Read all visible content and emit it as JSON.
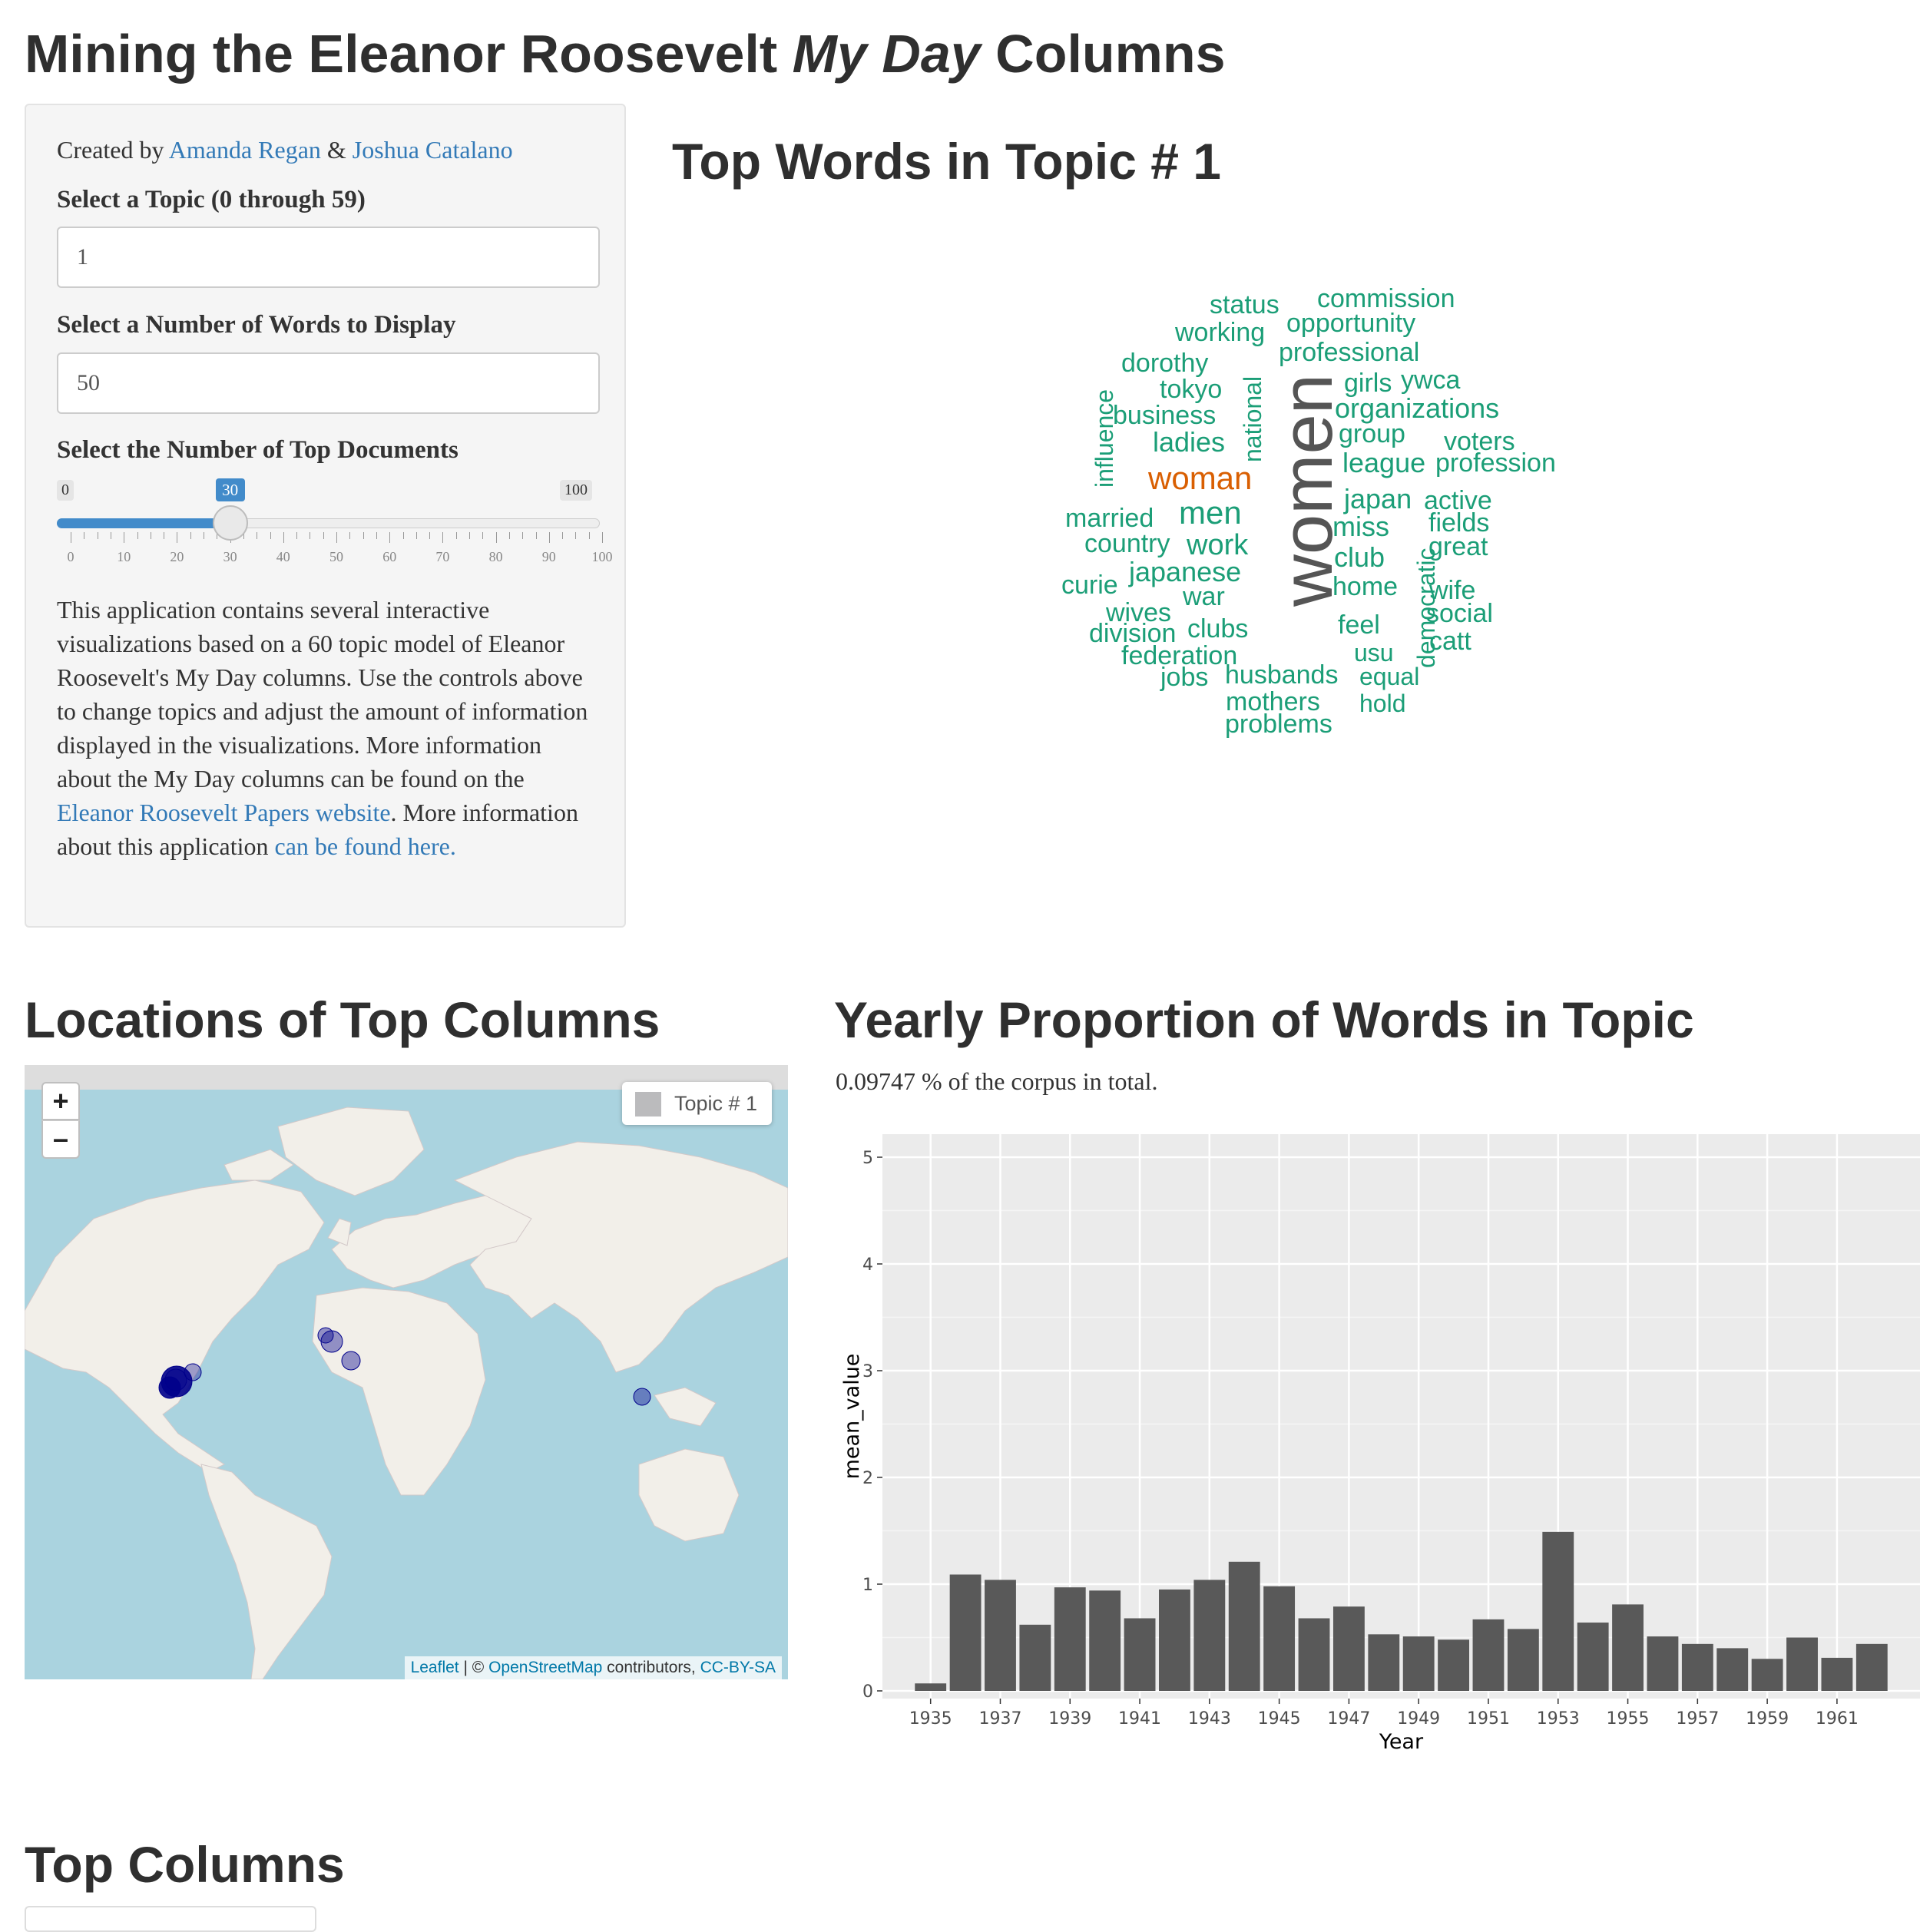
{
  "header": {
    "title_prefix": "Mining the Eleanor Roosevelt",
    "title_italic": "My Day",
    "title_suffix": "Columns"
  },
  "sidebar": {
    "created_by": "Created by",
    "author1": "Amanda Regan",
    "amp": "&",
    "author2": "Joshua Catalano",
    "topic_label": "Select a Topic (0 through 59)",
    "topic_value": "1",
    "words_label": "Select a Number of Words to Display",
    "words_value": "50",
    "docs_label": "Select the Number of Top Documents",
    "slider": {
      "min": "0",
      "max": "100",
      "value": "30",
      "value_fraction": 0.3,
      "tick_labels": [
        "0",
        "10",
        "20",
        "30",
        "40",
        "50",
        "60",
        "70",
        "80",
        "90",
        "100"
      ]
    },
    "desc_part1": "This application contains several interactive visualizations based on a 60 topic model of Eleanor Roosevelt's My Day columns. Use the controls above to change topics and adjust the amount of information displayed in the visualizations. More information about the My Day columns can be found on the ",
    "desc_link1": "Eleanor Roosevelt Papers website",
    "desc_part2": ". More information about this application ",
    "desc_link2": "can be found here."
  },
  "wordcloud": {
    "heading": "Top Words in Topic # 1",
    "highlight_color": "#d95f02",
    "word_color": "#1b9e77",
    "center_color": "#555555",
    "words": [
      "women",
      "woman",
      "men",
      "work",
      "japanese",
      "japan",
      "miss",
      "club",
      "home",
      "feel",
      "usu",
      "equal",
      "hold",
      "status",
      "commission",
      "working",
      "opportunity",
      "dorothy",
      "professional",
      "tokyo",
      "girls",
      "ywca",
      "business",
      "organizations",
      "group",
      "ladies",
      "voters",
      "league",
      "profession",
      "influence",
      "national",
      "active",
      "married",
      "country",
      "fields",
      "great",
      "curie",
      "democratic",
      "wife",
      "wives",
      "war",
      "social",
      "division",
      "clubs",
      "catt",
      "federation",
      "jobs",
      "husbands",
      "mothers",
      "problems"
    ]
  },
  "map": {
    "heading": "Locations of Top Columns",
    "zoom_in": "+",
    "zoom_out": "–",
    "legend_label": "Topic # 1",
    "attribution_leaflet": "Leaflet",
    "attribution_sep": " | © ",
    "attribution_osm": "OpenStreetMap",
    "attribution_mid": " contributors, ",
    "attribution_license": "CC-BY-SA",
    "marker_color": "#00008b"
  },
  "yearly": {
    "heading": "Yearly Proportion of Words in Topic",
    "subtitle": "0.09747 % of the corpus in total."
  },
  "chart_data": {
    "type": "bar",
    "xlabel": "Year",
    "ylabel": "mean_value",
    "ylim": [
      0,
      5
    ],
    "yticks": [
      0,
      1,
      2,
      3,
      4,
      5
    ],
    "xtick_labels": [
      "1935",
      "1937",
      "1939",
      "1941",
      "1943",
      "1945",
      "1947",
      "1949",
      "1951",
      "1953",
      "1955",
      "1957",
      "1959",
      "1961"
    ],
    "x": [
      1935,
      1936,
      1937,
      1938,
      1939,
      1940,
      1941,
      1942,
      1943,
      1944,
      1945,
      1946,
      1947,
      1948,
      1949,
      1950,
      1951,
      1952,
      1953,
      1954,
      1955,
      1956,
      1957,
      1958,
      1959,
      1960,
      1961,
      1962
    ],
    "values": [
      0.07,
      1.09,
      1.04,
      0.62,
      0.97,
      0.94,
      0.68,
      0.95,
      1.04,
      1.21,
      0.98,
      0.68,
      0.79,
      0.53,
      0.51,
      0.48,
      0.67,
      0.58,
      1.49,
      0.64,
      0.81,
      0.51,
      0.44,
      0.4,
      0.3,
      0.5,
      0.31,
      0.44
    ],
    "bar_color": "#595959",
    "panel_color": "#ebebeb",
    "grid": true
  },
  "footer": {
    "heading": "Top Columns"
  }
}
